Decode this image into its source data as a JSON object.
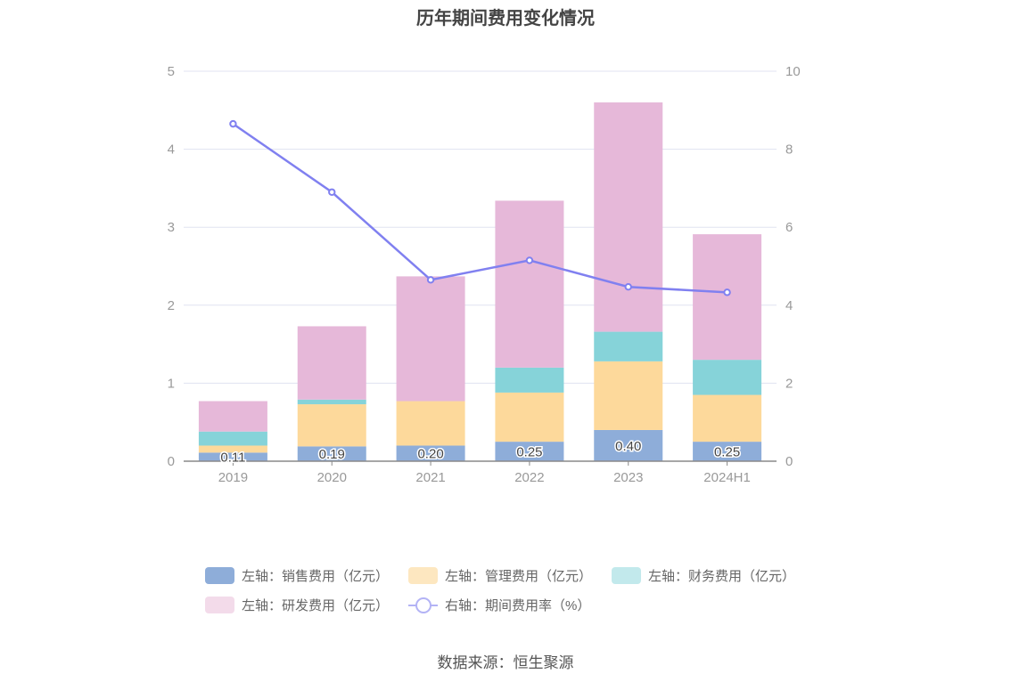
{
  "title": "历年期间费用变化情况",
  "source": "数据来源：恒生聚源",
  "colors": {
    "sales": "#8eadd9",
    "admin": "#fdd99b",
    "finance": "#86d3d9",
    "rd": "#e6b8d9",
    "rate": "#8080f0",
    "grid": "#e0e3f0",
    "axis_text": "#999999"
  },
  "chart_data": {
    "type": "bar",
    "categories": [
      "2019",
      "2020",
      "2021",
      "2022",
      "2023",
      "2024H1"
    ],
    "left_axis": {
      "ylim": [
        0,
        5
      ],
      "ticks": [
        0,
        1,
        2,
        3,
        4,
        5
      ]
    },
    "right_axis": {
      "ylim": [
        0,
        10
      ],
      "ticks": [
        0,
        2,
        4,
        6,
        8,
        10
      ]
    },
    "series": [
      {
        "key": "sales",
        "name": "左轴：销售费用（亿元）",
        "axis": "left",
        "kind": "bar",
        "values": [
          0.11,
          0.19,
          0.2,
          0.25,
          0.4,
          0.25
        ],
        "labels": [
          "0.11",
          "0.19",
          "0.20",
          "0.25",
          "0.40",
          "0.25"
        ]
      },
      {
        "key": "admin",
        "name": "左轴：管理费用（亿元）",
        "axis": "left",
        "kind": "bar",
        "values": [
          0.09,
          0.54,
          0.57,
          0.63,
          0.88,
          0.6
        ]
      },
      {
        "key": "finance",
        "name": "左轴：财务费用（亿元）",
        "axis": "left",
        "kind": "bar",
        "values": [
          0.18,
          0.06,
          0.0,
          0.32,
          0.38,
          0.45
        ]
      },
      {
        "key": "rd",
        "name": "左轴：研发费用（亿元）",
        "axis": "left",
        "kind": "bar",
        "values": [
          0.39,
          0.94,
          1.6,
          2.14,
          2.94,
          1.61
        ]
      },
      {
        "key": "rate",
        "name": "右轴：期间费用率（%）",
        "axis": "right",
        "kind": "line",
        "values": [
          8.65,
          6.9,
          4.65,
          5.15,
          4.47,
          4.33
        ]
      }
    ]
  }
}
